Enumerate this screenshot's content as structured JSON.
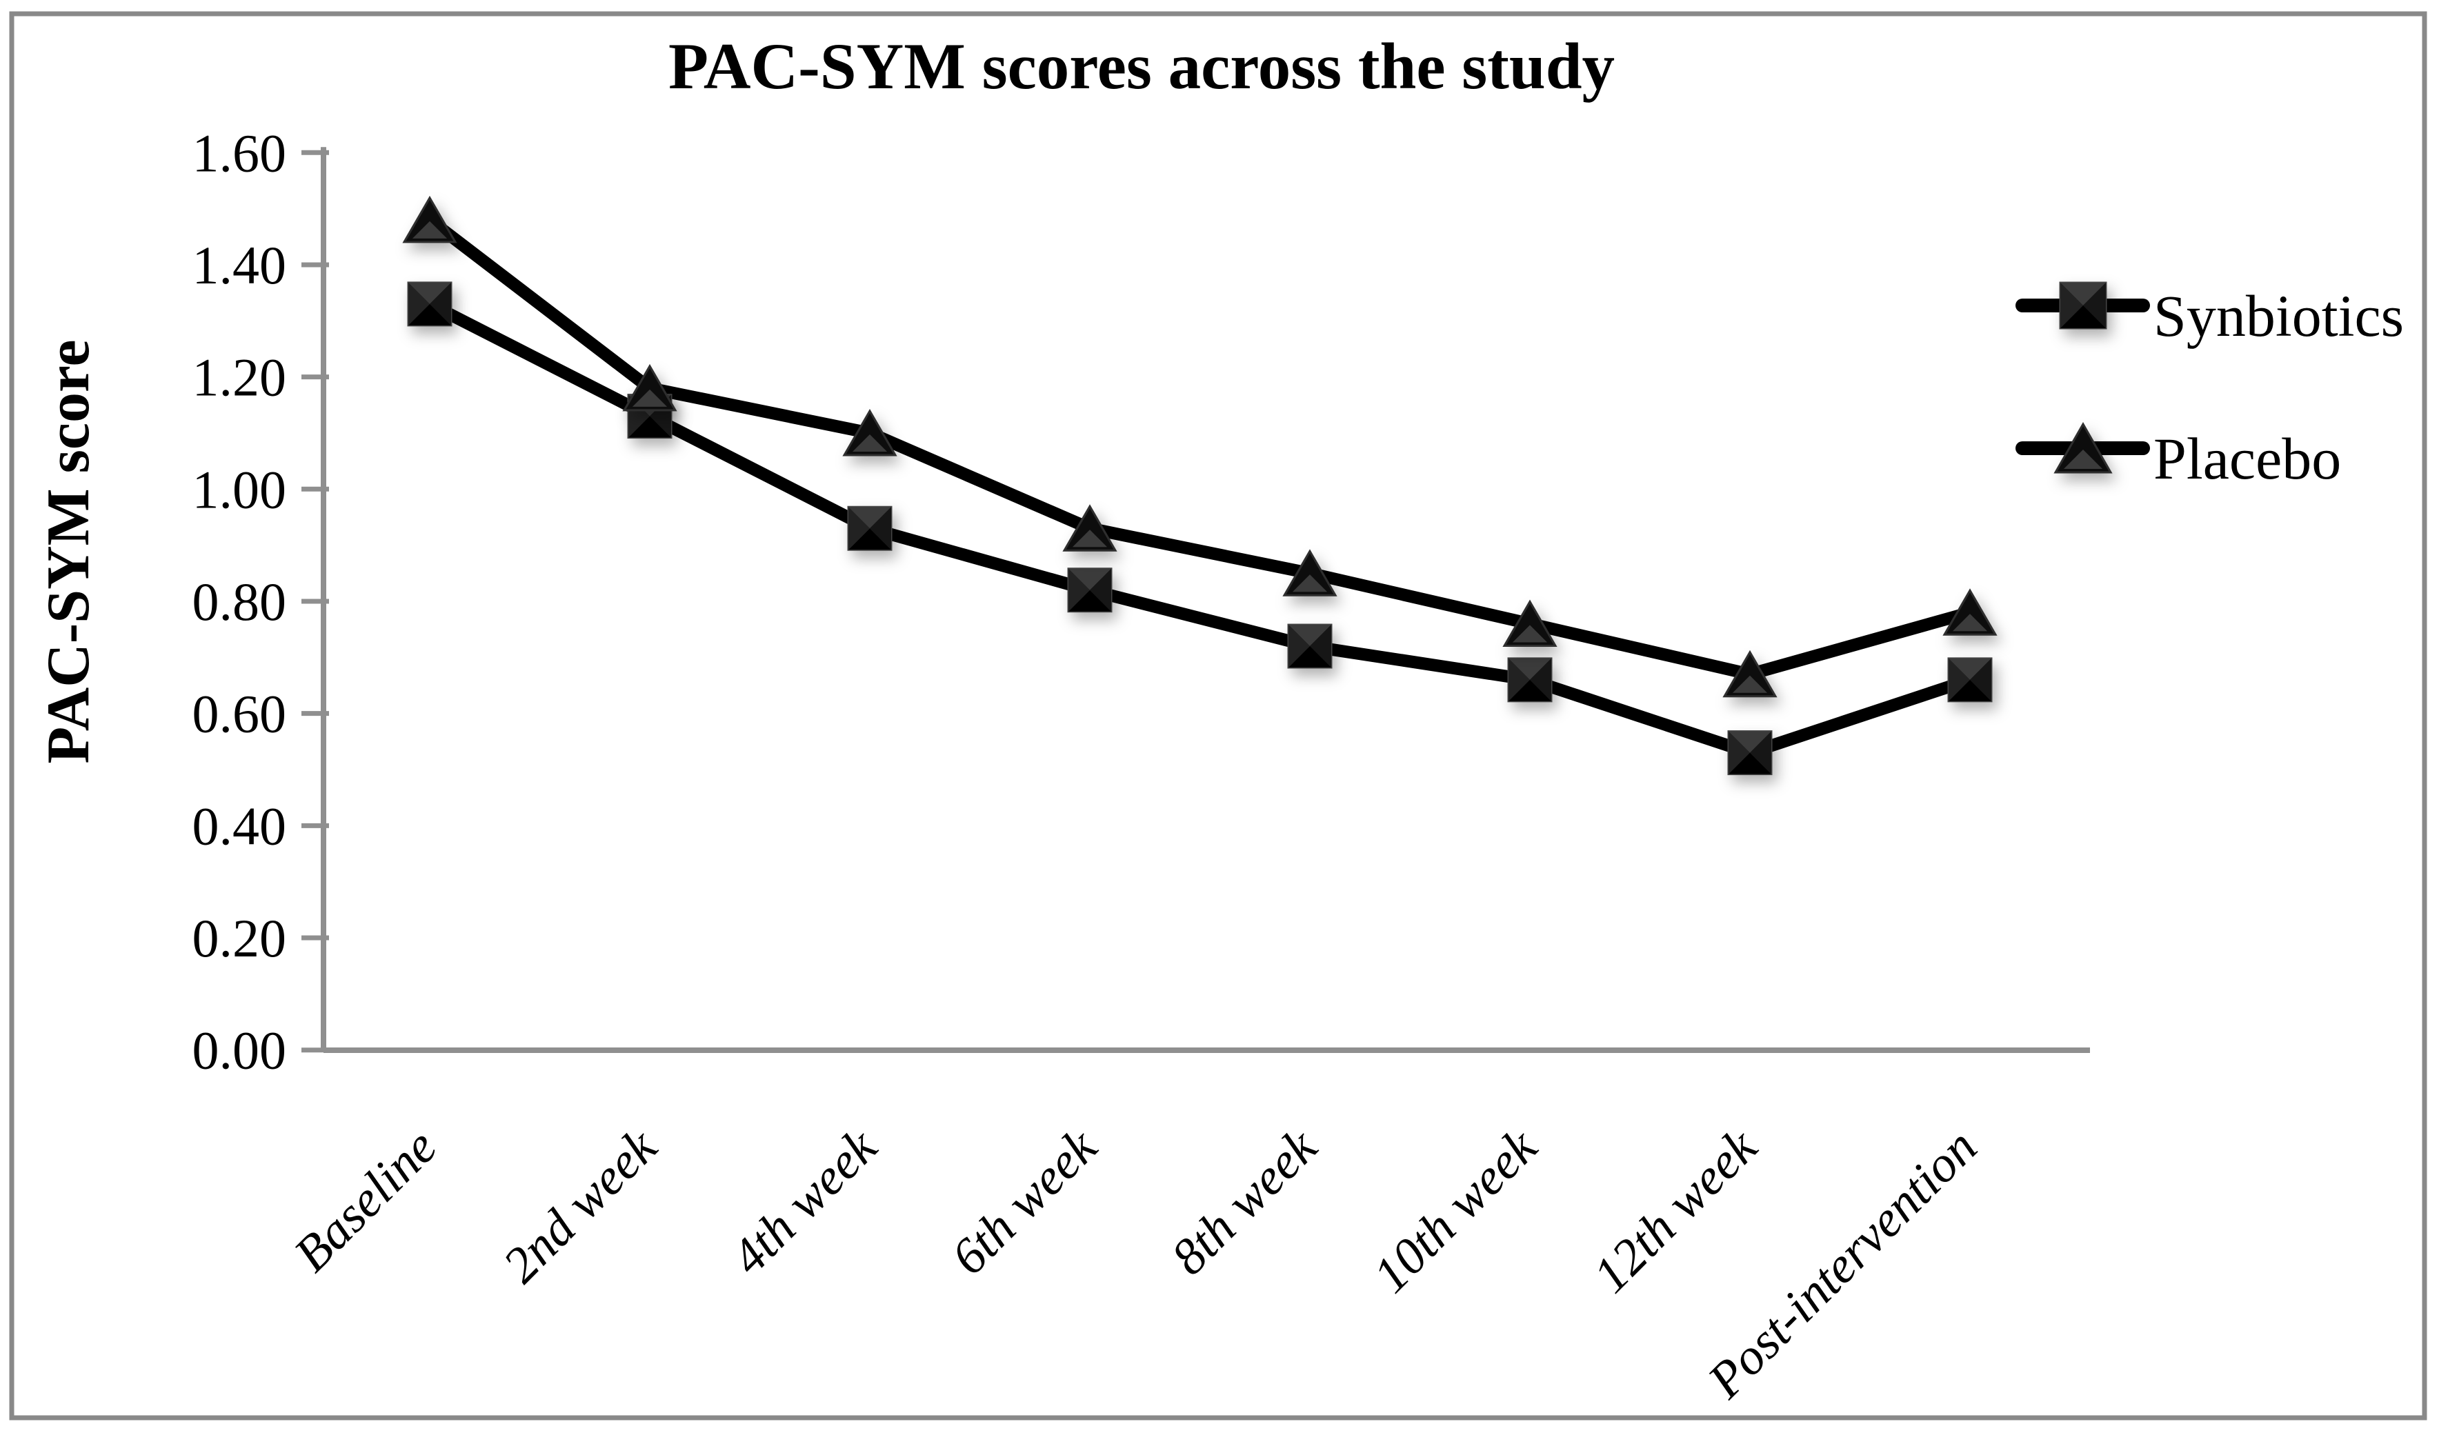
{
  "chart_data": {
    "type": "line",
    "title": "PAC-SYM scores across the study",
    "ylabel": "PAC-SYM score",
    "xlabel": "",
    "categories": [
      "Baseline",
      "2nd week",
      "4th week",
      "6th week",
      "8th week",
      "10th week",
      "12th week",
      "Post-intervention"
    ],
    "series": [
      {
        "name": "Synbiotics",
        "marker": "square",
        "values": [
          1.33,
          1.13,
          0.93,
          0.82,
          0.72,
          0.66,
          0.53,
          0.66
        ]
      },
      {
        "name": "Placebo",
        "marker": "triangle",
        "values": [
          1.48,
          1.18,
          1.1,
          0.93,
          0.85,
          0.76,
          0.67,
          0.78
        ]
      }
    ],
    "ylim": [
      0.0,
      1.6
    ],
    "ytick_step": 0.2,
    "ytick_labels": [
      "0.00",
      "0.20",
      "0.40",
      "0.60",
      "0.80",
      "1.00",
      "1.20",
      "1.40",
      "1.60"
    ],
    "grid": false,
    "legend_position": "right",
    "colors": {
      "line": "#000000",
      "marker_fill": "#111111",
      "marker_facet_light": "#3a3a3a",
      "marker_facet_dark": "#060606",
      "marker_edge": "#454545",
      "axis": "#8f8f8f",
      "border": "#898989",
      "text": "#000000",
      "background": "#ffffff"
    }
  }
}
